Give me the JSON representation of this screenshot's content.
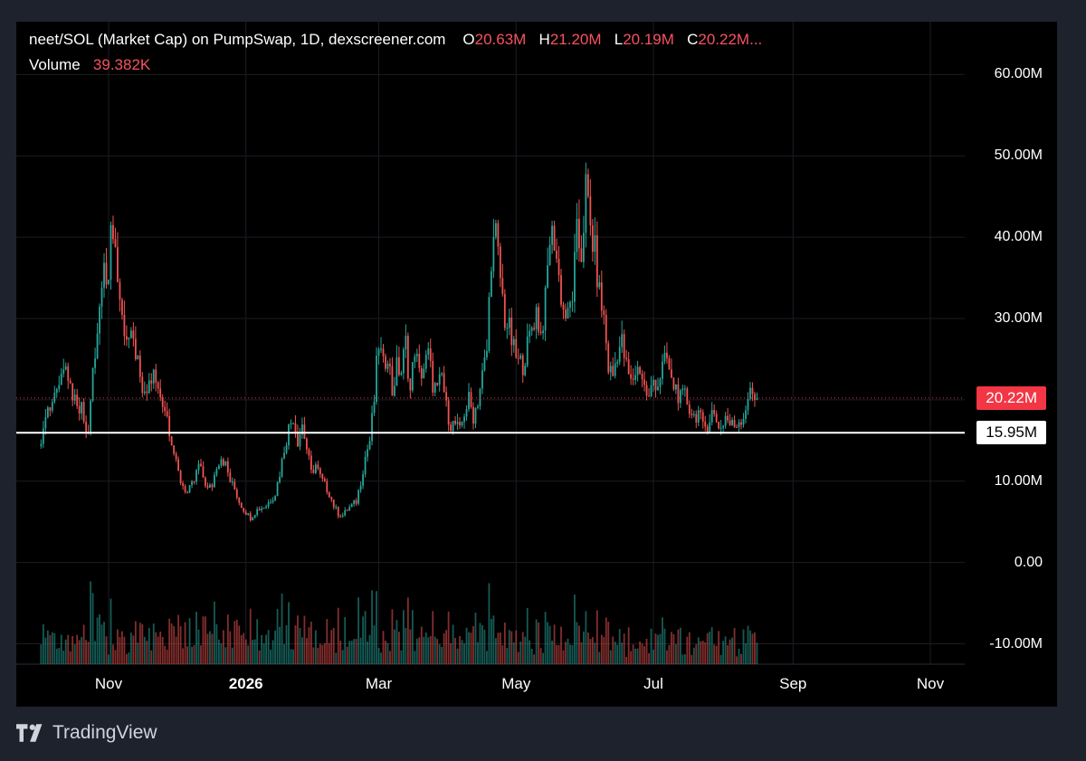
{
  "legend": {
    "title": "neet/SOL (Market Cap) on PumpSwap, 1D, dexscreener.com",
    "o_label": "O",
    "o_value": "20.63M",
    "h_label": "H",
    "h_value": "21.20M",
    "l_label": "L",
    "l_value": "20.19M",
    "c_label": "C",
    "c_value": "20.22M...",
    "volume_label": "Volume",
    "volume_value": "39.382K"
  },
  "price_tags": {
    "last_price": "20.22M",
    "level": "15.95M"
  },
  "brand": {
    "name": "TradingView"
  },
  "colors": {
    "up": "#26a69a",
    "down": "#ef5350",
    "last_price_line": "#f23645",
    "level_line": "#ffffff"
  },
  "chart_data": {
    "type": "candlestick",
    "interval": "1D",
    "yaxis": {
      "ticks": [
        "60.00M",
        "50.00M",
        "40.00M",
        "30.00M",
        "20.00M",
        "10.00M",
        "0.00",
        "-10.00M"
      ],
      "tick_values": [
        60,
        50,
        40,
        30,
        20,
        10,
        0,
        -10
      ],
      "ylim": [
        -12.5,
        66.5
      ],
      "unit": "M"
    },
    "xaxis": {
      "ticks": [
        "Nov",
        "2026",
        "Mar",
        "May",
        "Jul",
        "Sep",
        "Nov"
      ],
      "tick_days": [
        0,
        61,
        120,
        181,
        242,
        304,
        365
      ],
      "bold": [
        false,
        true,
        false,
        false,
        false,
        false,
        false
      ]
    },
    "last_price": 20.22,
    "horizontal_level": 15.95,
    "first_candle_day": -30,
    "last_candle_day": 288,
    "series_close_M": [
      [
        -30,
        15.5
      ],
      [
        -27,
        18
      ],
      [
        -24,
        20
      ],
      [
        -20,
        24.5
      ],
      [
        -16,
        21
      ],
      [
        -12,
        19
      ],
      [
        -9,
        16
      ],
      [
        -7,
        23
      ],
      [
        -5,
        28
      ],
      [
        -3,
        34
      ],
      [
        0,
        37
      ],
      [
        2,
        42
      ],
      [
        4,
        35
      ],
      [
        6,
        30
      ],
      [
        8,
        28
      ],
      [
        10,
        27
      ],
      [
        12,
        26
      ],
      [
        14,
        22
      ],
      [
        16,
        20
      ],
      [
        18,
        22
      ],
      [
        20,
        23
      ],
      [
        22,
        21
      ],
      [
        24,
        20
      ],
      [
        26,
        18
      ],
      [
        28,
        15
      ],
      [
        30,
        12
      ],
      [
        32,
        10
      ],
      [
        35,
        8.5
      ],
      [
        38,
        10
      ],
      [
        40,
        12
      ],
      [
        42,
        10.5
      ],
      [
        44,
        9
      ],
      [
        46,
        9.5
      ],
      [
        48,
        12
      ],
      [
        50,
        13
      ],
      [
        52,
        12
      ],
      [
        54,
        10
      ],
      [
        56,
        9
      ],
      [
        58,
        7.5
      ],
      [
        60,
        6.5
      ],
      [
        63,
        5.5
      ],
      [
        66,
        6.5
      ],
      [
        70,
        7
      ],
      [
        74,
        8.5
      ],
      [
        76,
        11
      ],
      [
        78,
        14
      ],
      [
        80,
        16.5
      ],
      [
        82,
        18
      ],
      [
        84,
        15
      ],
      [
        86,
        17
      ],
      [
        88,
        14
      ],
      [
        90,
        11
      ],
      [
        92,
        12
      ],
      [
        94,
        10.5
      ],
      [
        96,
        9.5
      ],
      [
        98,
        8.5
      ],
      [
        100,
        7
      ],
      [
        102,
        6
      ],
      [
        104,
        5.8
      ],
      [
        106,
        6.5
      ],
      [
        110,
        7.5
      ],
      [
        112,
        10
      ],
      [
        114,
        13
      ],
      [
        116,
        15
      ],
      [
        118,
        20
      ],
      [
        119,
        24
      ],
      [
        120,
        27
      ],
      [
        122,
        24
      ],
      [
        124,
        26
      ],
      [
        126,
        21
      ],
      [
        128,
        24
      ],
      [
        130,
        23.5
      ],
      [
        132,
        27
      ],
      [
        134,
        21
      ],
      [
        136,
        26.5
      ],
      [
        138,
        23
      ],
      [
        140,
        24
      ],
      [
        142,
        25.5
      ],
      [
        144,
        22
      ],
      [
        146,
        21
      ],
      [
        148,
        23
      ],
      [
        150,
        19
      ],
      [
        152,
        17
      ],
      [
        154,
        17
      ],
      [
        156,
        16
      ],
      [
        158,
        18.5
      ],
      [
        160,
        20
      ],
      [
        162,
        18
      ],
      [
        164,
        20
      ],
      [
        166,
        23
      ],
      [
        168,
        26
      ],
      [
        170,
        38
      ],
      [
        172,
        40
      ],
      [
        174,
        35
      ],
      [
        176,
        30
      ],
      [
        178,
        28.5
      ],
      [
        180,
        26
      ],
      [
        182,
        24.5
      ],
      [
        184,
        24.5
      ],
      [
        186,
        26.5
      ],
      [
        188,
        29
      ],
      [
        190,
        31
      ],
      [
        192,
        28
      ],
      [
        194,
        32
      ],
      [
        196,
        40
      ],
      [
        198,
        40
      ],
      [
        200,
        35
      ],
      [
        202,
        31
      ],
      [
        204,
        30
      ],
      [
        206,
        33
      ],
      [
        208,
        40
      ],
      [
        210,
        38
      ],
      [
        212,
        46
      ],
      [
        214,
        41
      ],
      [
        216,
        38
      ],
      [
        218,
        33
      ],
      [
        220,
        30
      ],
      [
        222,
        24
      ],
      [
        224,
        23
      ],
      [
        226,
        26
      ],
      [
        228,
        27
      ],
      [
        230,
        24
      ],
      [
        232,
        22
      ],
      [
        234,
        23.5
      ],
      [
        236,
        24
      ],
      [
        238,
        21.5
      ],
      [
        240,
        20
      ],
      [
        242,
        22.5
      ],
      [
        244,
        22
      ],
      [
        246,
        24
      ],
      [
        248,
        25
      ],
      [
        250,
        22
      ],
      [
        252,
        21.5
      ],
      [
        254,
        20
      ],
      [
        256,
        20.5
      ],
      [
        258,
        19
      ],
      [
        260,
        18
      ],
      [
        262,
        18.5
      ],
      [
        264,
        16.5
      ],
      [
        266,
        17
      ],
      [
        268,
        18.5
      ],
      [
        270,
        17.5
      ],
      [
        272,
        16.5
      ],
      [
        274,
        18
      ],
      [
        276,
        17
      ],
      [
        278,
        16.8
      ],
      [
        280,
        17.5
      ],
      [
        282,
        18
      ],
      [
        284,
        20.5
      ],
      [
        286,
        20.63
      ],
      [
        288,
        20.22
      ]
    ],
    "volume_scale": "relative"
  }
}
